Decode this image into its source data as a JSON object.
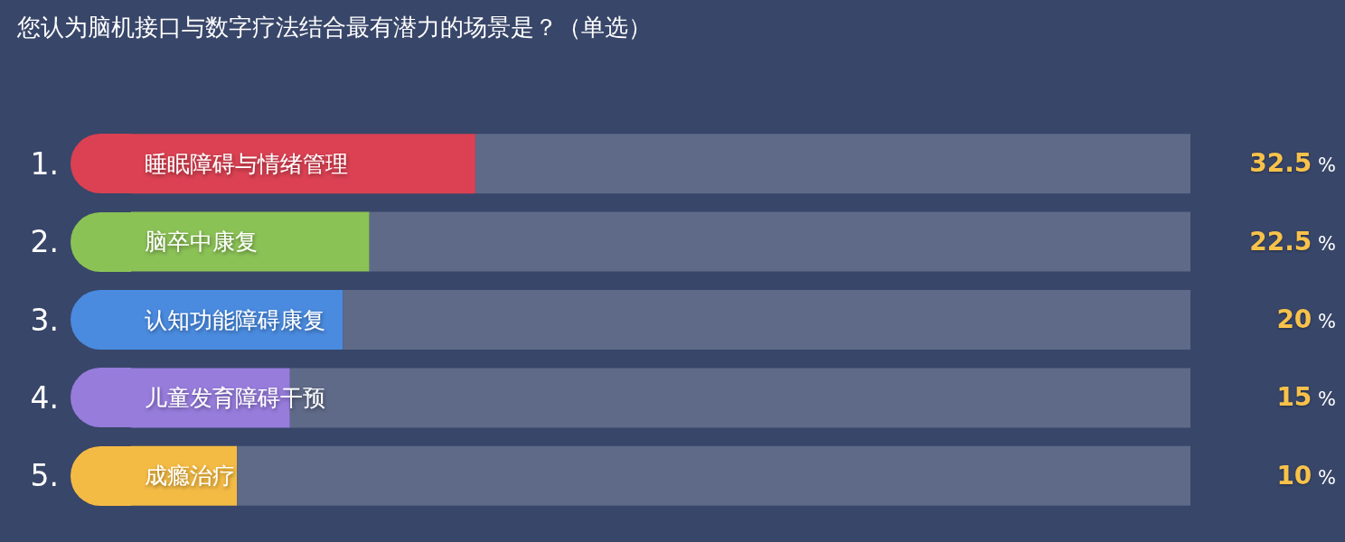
{
  "chart_data": {
    "type": "bar",
    "orientation": "horizontal",
    "stacked": true,
    "title": "您认为脑机接口与数字疗法结合最有潜力的场景是？（单选）",
    "categories": [
      "睡眠障碍与情绪管理",
      "脑卒中康复",
      "认知功能障碍康复",
      "儿童发育障碍干预",
      "成瘾治疗"
    ],
    "series": [
      {
        "colors": [
          "#db4152",
          "#8bc256",
          "#4a8be0",
          "#977cdc",
          "#f4bb44"
        ],
        "values": [
          32.5,
          22.5,
          20,
          15,
          10
        ],
        "value_labels": [
          "32.5 %",
          "22.5 %",
          "20 %",
          "15 %",
          "10 %"
        ]
      },
      {
        "color": "#5f6a88",
        "values": [
          67.5,
          77.5,
          80,
          85,
          90
        ]
      }
    ],
    "tick_labels": "y",
    "annotations": [
      "1.",
      "2.",
      "3.",
      "4.",
      "5."
    ]
  }
}
